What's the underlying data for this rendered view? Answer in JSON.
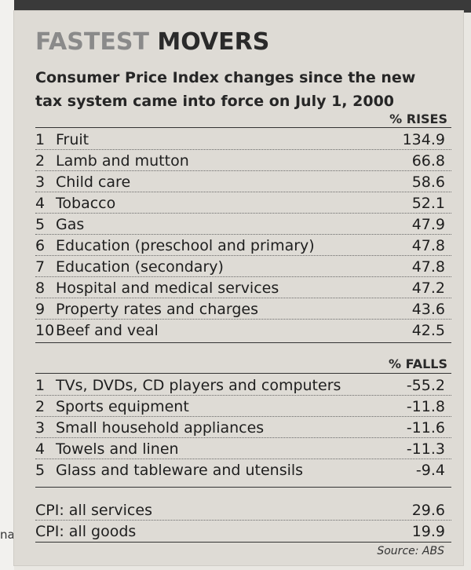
{
  "title": {
    "word1": "FASTEST",
    "word2": "MOVERS"
  },
  "subtitle": "Consumer Price Index changes since the new tax system came into force on July 1, 2000",
  "rises": {
    "header": "% RISES",
    "items": [
      {
        "rank": "1",
        "label": "Fruit",
        "value": "134.9"
      },
      {
        "rank": "2",
        "label": "Lamb and mutton",
        "value": "66.8"
      },
      {
        "rank": "3",
        "label": "Child care",
        "value": "58.6"
      },
      {
        "rank": "4",
        "label": "Tobacco",
        "value": "52.1"
      },
      {
        "rank": "5",
        "label": "Gas",
        "value": "47.9"
      },
      {
        "rank": "6",
        "label": "Education (preschool and primary)",
        "value": "47.8"
      },
      {
        "rank": "7",
        "label": "Education (secondary)",
        "value": "47.8"
      },
      {
        "rank": "8",
        "label": "Hospital and medical services",
        "value": "47.2"
      },
      {
        "rank": "9",
        "label": "Property rates and charges",
        "value": "43.6"
      },
      {
        "rank": "10",
        "label": "Beef and veal",
        "value": "42.5"
      }
    ]
  },
  "falls": {
    "header": "% FALLS",
    "items": [
      {
        "rank": "1",
        "label": "TVs, DVDs, CD players and computers",
        "value": "-55.2"
      },
      {
        "rank": "2",
        "label": "Sports equipment",
        "value": "-11.8"
      },
      {
        "rank": "3",
        "label": "Small household appliances",
        "value": "-11.6"
      },
      {
        "rank": "4",
        "label": "Towels and linen",
        "value": "-11.3"
      },
      {
        "rank": "5",
        "label": "Glass and tableware and utensils",
        "value": "-9.4"
      }
    ]
  },
  "cpi": [
    {
      "label": "CPI: all services",
      "value": "29.6"
    },
    {
      "label": "CPI: all goods",
      "value": "19.9"
    }
  ],
  "source": "Source: ABS",
  "edge_fragment": "na"
}
